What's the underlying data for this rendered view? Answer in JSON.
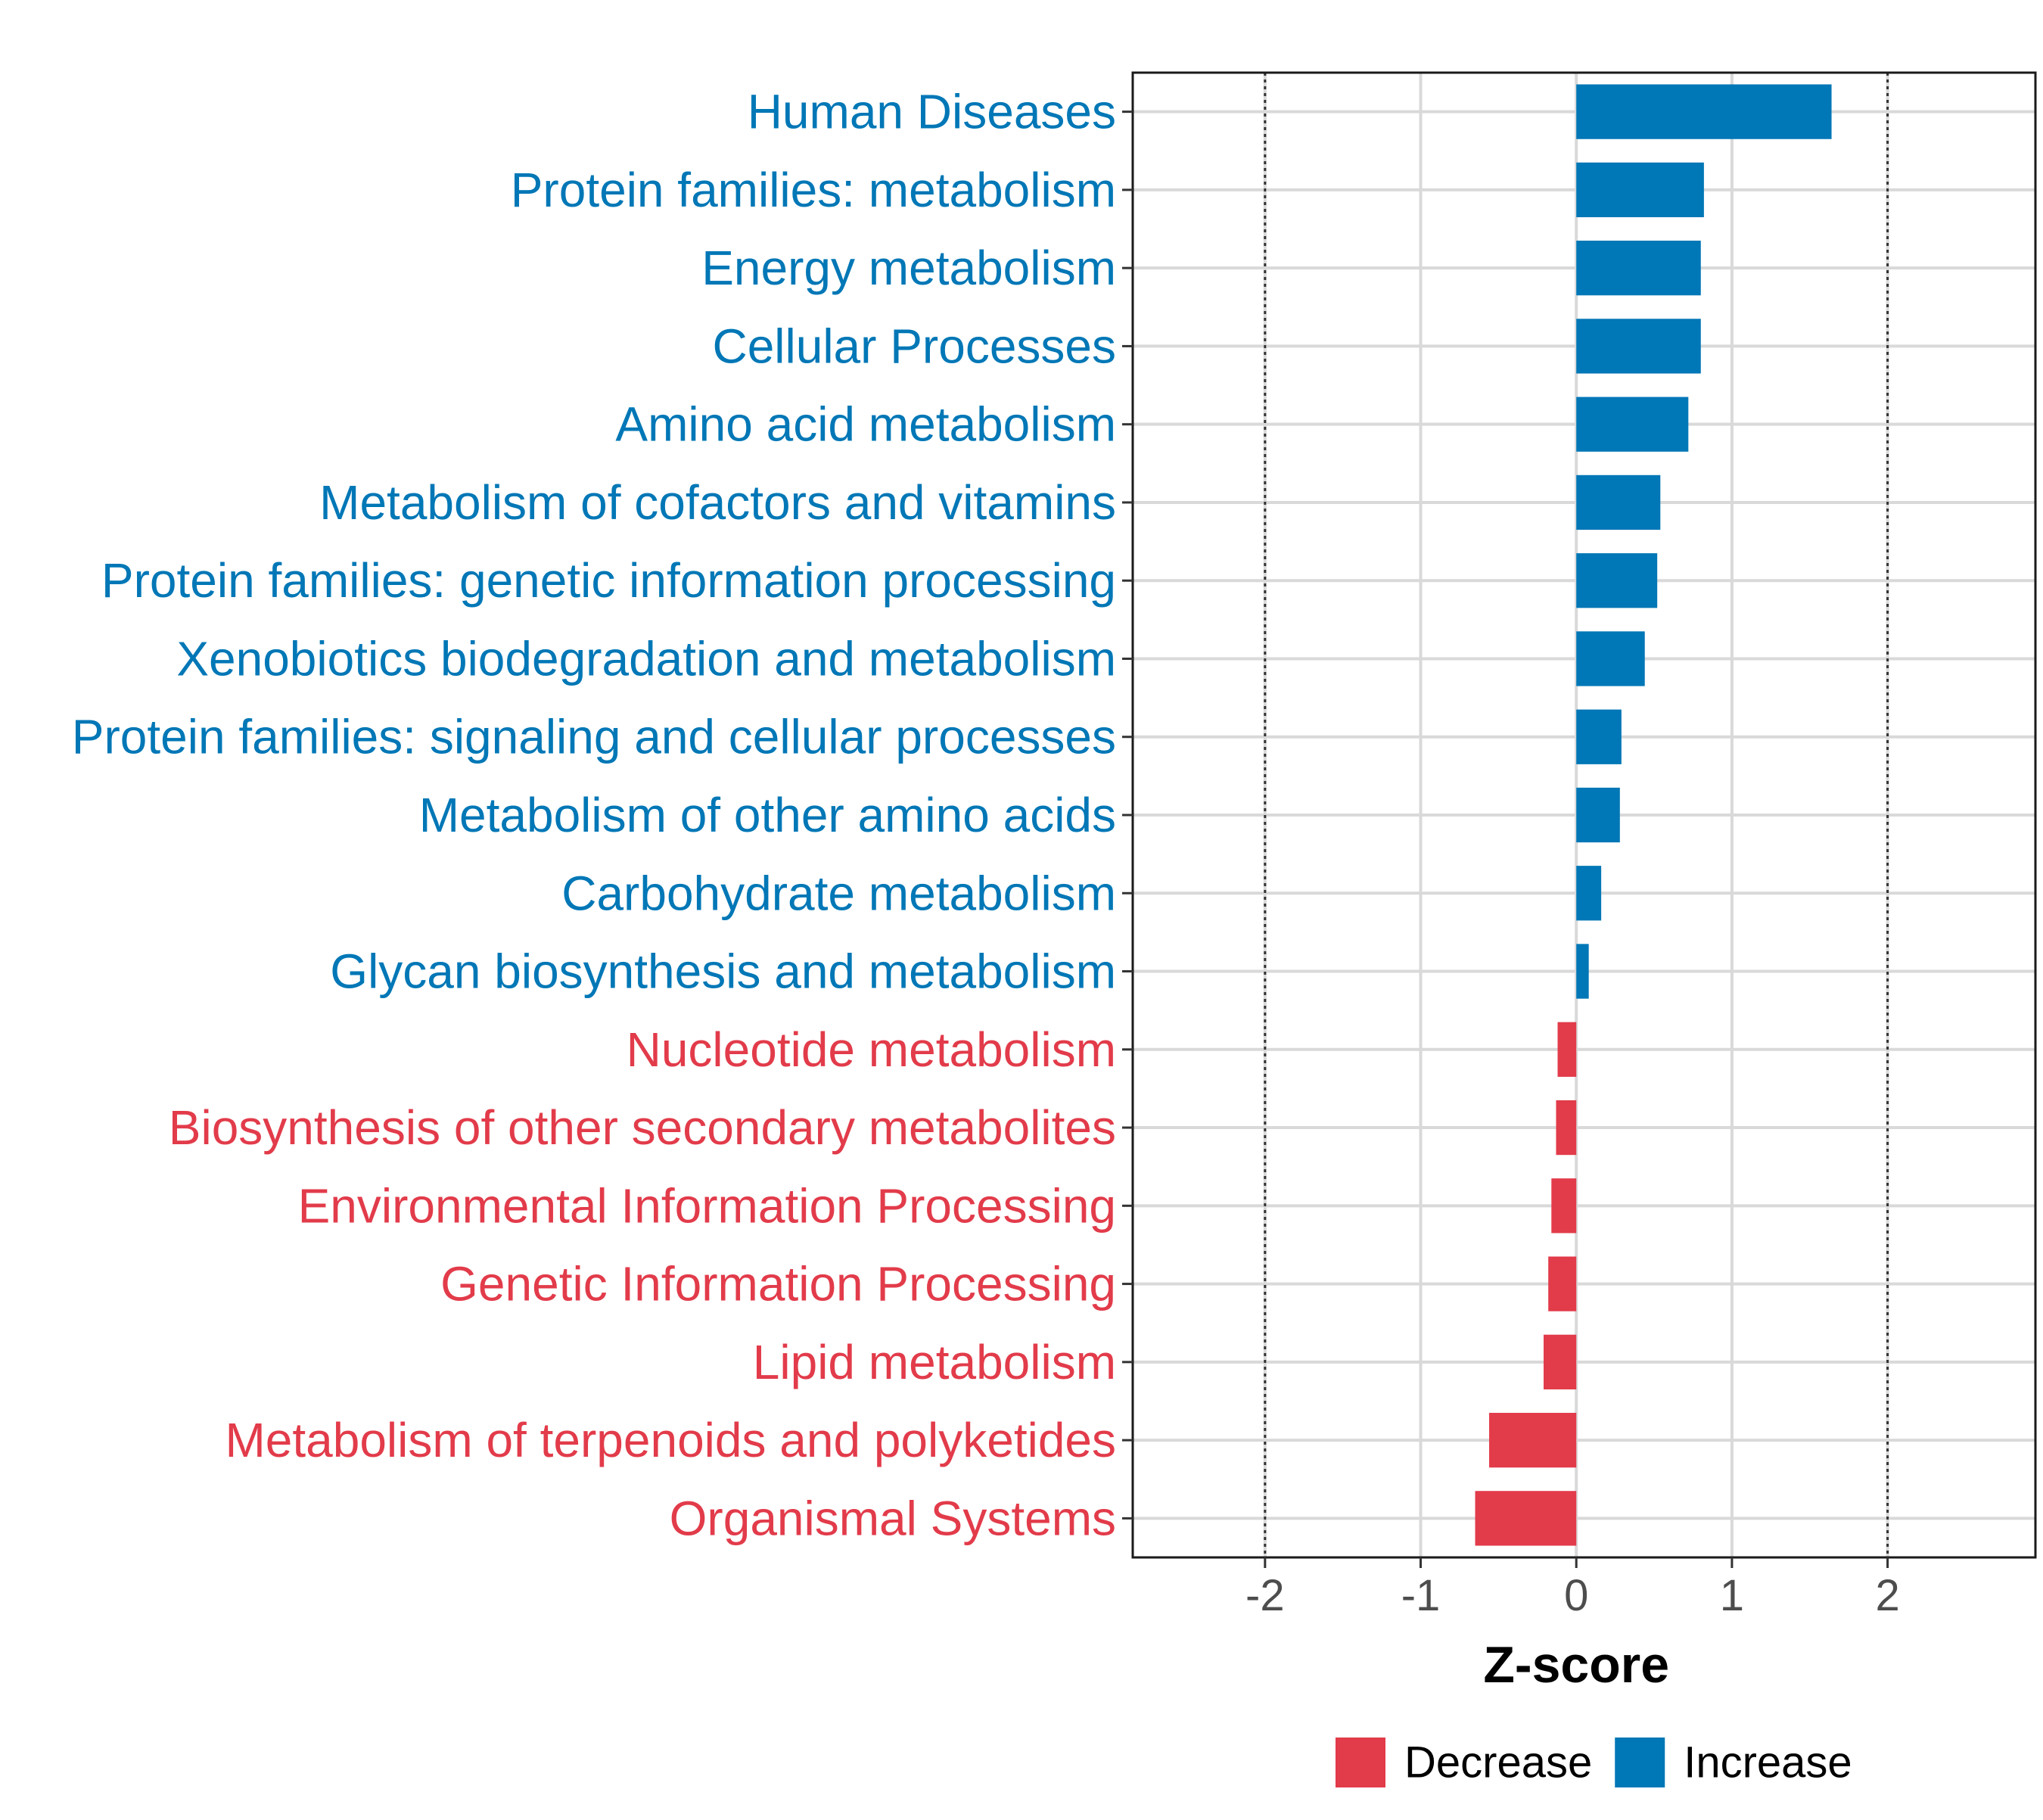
{
  "chart_data": {
    "type": "bar",
    "orientation": "horizontal",
    "title": "",
    "xlabel": "Z-score",
    "ylabel": "",
    "xlim": [
      -2.85,
      2.95
    ],
    "xticks": [
      -2,
      -1,
      0,
      1,
      2
    ],
    "xtick_labels": [
      "-2",
      "-1",
      "0",
      "1",
      "2"
    ],
    "reference_lines": [
      -2,
      2
    ],
    "grid": true,
    "categories": [
      "Human Diseases",
      "Protein families: metabolism",
      "Energy metabolism",
      "Cellular Processes",
      "Amino acid metabolism",
      "Metabolism of cofactors and vitamins",
      "Protein families: genetic information processing",
      "Xenobiotics biodegradation and metabolism",
      "Protein families: signaling and cellular processes",
      "Metabolism of other amino acids",
      "Carbohydrate metabolism",
      "Glycan biosynthesis and metabolism",
      "Nucleotide metabolism",
      "Biosynthesis of other secondary metabolites",
      "Environmental Information Processing",
      "Genetic Information Processing",
      "Lipid metabolism",
      "Metabolism of terpenoids and polyketides",
      "Organismal Systems"
    ],
    "values": [
      1.64,
      0.82,
      0.8,
      0.8,
      0.72,
      0.54,
      0.52,
      0.44,
      0.29,
      0.28,
      0.16,
      0.08,
      -0.12,
      -0.13,
      -0.16,
      -0.18,
      -0.21,
      -0.56,
      -0.65
    ],
    "groups": [
      "Increase",
      "Increase",
      "Increase",
      "Increase",
      "Increase",
      "Increase",
      "Increase",
      "Increase",
      "Increase",
      "Increase",
      "Increase",
      "Increase",
      "Decrease",
      "Decrease",
      "Decrease",
      "Decrease",
      "Decrease",
      "Decrease",
      "Decrease"
    ],
    "legend": {
      "position": "bottom",
      "entries": [
        {
          "label": "Decrease",
          "color": "#E23B4A"
        },
        {
          "label": "Increase",
          "color": "#0077B6"
        }
      ]
    }
  }
}
